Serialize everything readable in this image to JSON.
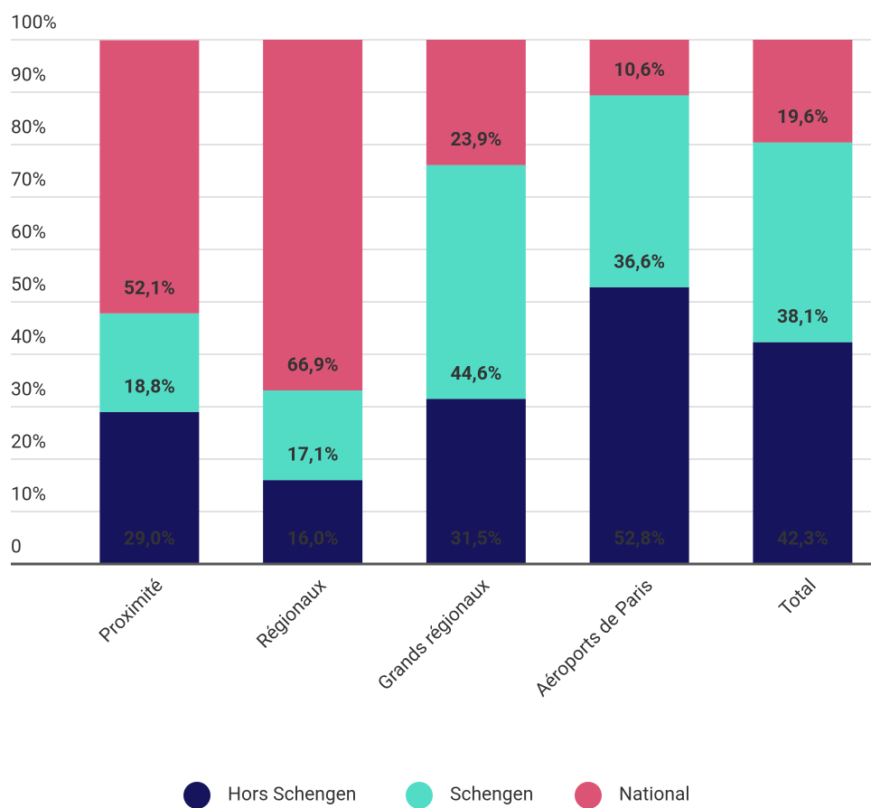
{
  "chart_data": {
    "type": "stacked_bar",
    "categories": [
      "Proximité",
      "Régionaux",
      "Grands régionaux",
      "Aéroports de Paris",
      "Total"
    ],
    "series": [
      {
        "name": "Hors Schengen",
        "color": "#17145e",
        "values": [
          29.0,
          16.0,
          31.5,
          52.8,
          42.3
        ],
        "value_labels": [
          "29,0%",
          "16,0%",
          "31,5%",
          "52,8%",
          "42,3%"
        ]
      },
      {
        "name": "Schengen",
        "color": "#52dcc5",
        "values": [
          18.8,
          17.1,
          44.6,
          36.6,
          38.1
        ],
        "value_labels": [
          "18,8%",
          "17,1%",
          "44,6%",
          "36,6%",
          "38,1%"
        ]
      },
      {
        "name": "National",
        "color": "#db5475",
        "values": [
          52.1,
          66.9,
          23.9,
          10.6,
          19.6
        ],
        "value_labels": [
          "52,1%",
          "66,9%",
          "23,9%",
          "10,6%",
          "19,6%"
        ]
      }
    ],
    "ylim": [
      0,
      100
    ],
    "yticks": [
      0,
      {
        "value": 10,
        "label": "10%"
      },
      {
        "value": 20,
        "label": "20%"
      },
      {
        "value": 30,
        "label": "30%"
      },
      {
        "value": 40,
        "label": "40%"
      },
      {
        "value": 50,
        "label": "50%"
      },
      {
        "value": 60,
        "label": "60%"
      },
      {
        "value": 70,
        "label": "70%"
      },
      {
        "value": 80,
        "label": "80%"
      },
      {
        "value": 90,
        "label": "90%"
      },
      {
        "value": 100,
        "label": "100%"
      }
    ],
    "grid": true,
    "legend": "bottom"
  }
}
